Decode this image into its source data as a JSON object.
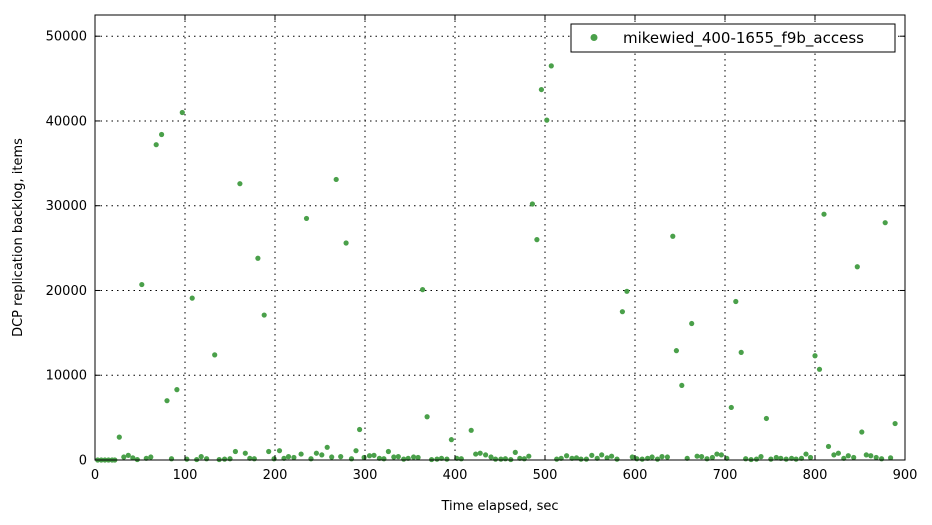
{
  "chart_data": {
    "type": "scatter",
    "xlabel": "Time elapsed, sec",
    "ylabel": "DCP replication backlog, items",
    "xlim": [
      0,
      900
    ],
    "ylim": [
      0,
      52500
    ],
    "xticks": [
      0,
      100,
      200,
      300,
      400,
      500,
      600,
      700,
      800,
      900
    ],
    "yticks": [
      0,
      10000,
      20000,
      30000,
      40000,
      50000
    ],
    "grid": true,
    "grid_style": "dotted",
    "legend_position": "top-right",
    "marker_color": "#4aa04a",
    "series": [
      {
        "name": "mikewied_400-1655_f9b_access",
        "points": [
          [
            3,
            0
          ],
          [
            7,
            0
          ],
          [
            11,
            0
          ],
          [
            15,
            0
          ],
          [
            19,
            0
          ],
          [
            22,
            0
          ],
          [
            27,
            2700
          ],
          [
            32,
            350
          ],
          [
            37,
            550
          ],
          [
            42,
            250
          ],
          [
            47,
            50
          ],
          [
            52,
            20700
          ],
          [
            57,
            200
          ],
          [
            62,
            350
          ],
          [
            68,
            37200
          ],
          [
            74,
            38400
          ],
          [
            80,
            7000
          ],
          [
            85,
            150
          ],
          [
            91,
            8300
          ],
          [
            97,
            41000
          ],
          [
            102,
            100
          ],
          [
            108,
            19100
          ],
          [
            113,
            50
          ],
          [
            118,
            400
          ],
          [
            124,
            150
          ],
          [
            133,
            12400
          ],
          [
            138,
            50
          ],
          [
            144,
            100
          ],
          [
            150,
            150
          ],
          [
            156,
            1000
          ],
          [
            161,
            32600
          ],
          [
            167,
            800
          ],
          [
            172,
            200
          ],
          [
            177,
            150
          ],
          [
            181,
            23800
          ],
          [
            188,
            17100
          ],
          [
            193,
            1000
          ],
          [
            199,
            150
          ],
          [
            205,
            1100
          ],
          [
            210,
            200
          ],
          [
            215,
            400
          ],
          [
            221,
            300
          ],
          [
            229,
            700
          ],
          [
            235,
            28500
          ],
          [
            240,
            150
          ],
          [
            246,
            800
          ],
          [
            252,
            600
          ],
          [
            258,
            1500
          ],
          [
            263,
            350
          ],
          [
            268,
            33100
          ],
          [
            273,
            400
          ],
          [
            279,
            25600
          ],
          [
            285,
            150
          ],
          [
            290,
            1100
          ],
          [
            294,
            3600
          ],
          [
            299,
            300
          ],
          [
            305,
            500
          ],
          [
            310,
            550
          ],
          [
            316,
            200
          ],
          [
            321,
            150
          ],
          [
            326,
            1000
          ],
          [
            332,
            350
          ],
          [
            337,
            400
          ],
          [
            343,
            100
          ],
          [
            348,
            200
          ],
          [
            354,
            350
          ],
          [
            359,
            300
          ],
          [
            364,
            20100
          ],
          [
            369,
            5100
          ],
          [
            374,
            50
          ],
          [
            380,
            100
          ],
          [
            385,
            200
          ],
          [
            391,
            100
          ],
          [
            396,
            2400
          ],
          [
            402,
            200
          ],
          [
            407,
            150
          ],
          [
            418,
            3500
          ],
          [
            423,
            700
          ],
          [
            428,
            800
          ],
          [
            434,
            600
          ],
          [
            440,
            350
          ],
          [
            445,
            100
          ],
          [
            451,
            100
          ],
          [
            456,
            150
          ],
          [
            462,
            50
          ],
          [
            467,
            900
          ],
          [
            472,
            200
          ],
          [
            477,
            150
          ],
          [
            482,
            450
          ],
          [
            486,
            30200
          ],
          [
            491,
            26000
          ],
          [
            496,
            43700
          ],
          [
            502,
            40100
          ],
          [
            507,
            46500
          ],
          [
            513,
            100
          ],
          [
            518,
            200
          ],
          [
            524,
            500
          ],
          [
            530,
            200
          ],
          [
            535,
            250
          ],
          [
            540,
            100
          ],
          [
            546,
            100
          ],
          [
            552,
            550
          ],
          [
            558,
            200
          ],
          [
            563,
            600
          ],
          [
            569,
            250
          ],
          [
            574,
            450
          ],
          [
            580,
            100
          ],
          [
            586,
            17500
          ],
          [
            591,
            19900
          ],
          [
            597,
            350
          ],
          [
            602,
            150
          ],
          [
            608,
            100
          ],
          [
            614,
            200
          ],
          [
            619,
            350
          ],
          [
            625,
            100
          ],
          [
            630,
            400
          ],
          [
            636,
            350
          ],
          [
            642,
            26400
          ],
          [
            646,
            12900
          ],
          [
            652,
            8800
          ],
          [
            658,
            200
          ],
          [
            663,
            16100
          ],
          [
            669,
            450
          ],
          [
            674,
            400
          ],
          [
            680,
            150
          ],
          [
            686,
            300
          ],
          [
            691,
            700
          ],
          [
            696,
            600
          ],
          [
            702,
            200
          ],
          [
            707,
            6200
          ],
          [
            712,
            18700
          ],
          [
            718,
            12700
          ],
          [
            723,
            150
          ],
          [
            729,
            50
          ],
          [
            735,
            100
          ],
          [
            740,
            400
          ],
          [
            746,
            4900
          ],
          [
            751,
            100
          ],
          [
            757,
            300
          ],
          [
            762,
            200
          ],
          [
            768,
            100
          ],
          [
            774,
            200
          ],
          [
            779,
            100
          ],
          [
            785,
            200
          ],
          [
            790,
            700
          ],
          [
            795,
            300
          ],
          [
            800,
            12300
          ],
          [
            805,
            10700
          ],
          [
            810,
            29000
          ],
          [
            815,
            1600
          ],
          [
            821,
            600
          ],
          [
            826,
            800
          ],
          [
            832,
            200
          ],
          [
            837,
            500
          ],
          [
            843,
            300
          ],
          [
            847,
            22800
          ],
          [
            852,
            3300
          ],
          [
            857,
            600
          ],
          [
            862,
            500
          ],
          [
            868,
            300
          ],
          [
            874,
            150
          ],
          [
            878,
            28000
          ],
          [
            884,
            250
          ],
          [
            889,
            4300
          ]
        ]
      }
    ]
  }
}
